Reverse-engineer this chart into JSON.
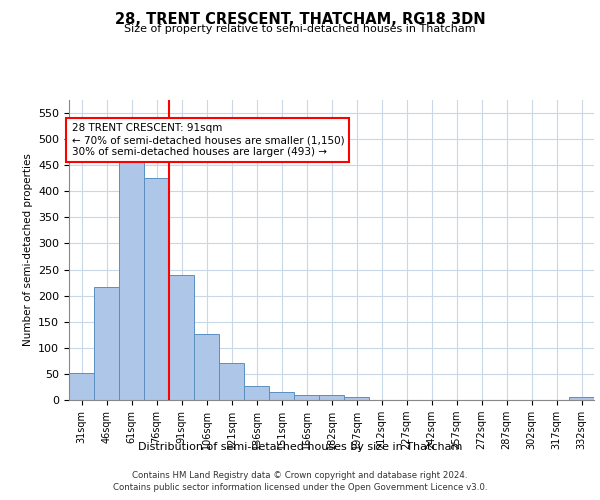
{
  "title": "28, TRENT CRESCENT, THATCHAM, RG18 3DN",
  "subtitle": "Size of property relative to semi-detached houses in Thatcham",
  "xlabel": "Distribution of semi-detached houses by size in Thatcham",
  "ylabel": "Number of semi-detached properties",
  "categories": [
    "31sqm",
    "46sqm",
    "61sqm",
    "76sqm",
    "91sqm",
    "106sqm",
    "121sqm",
    "136sqm",
    "151sqm",
    "166sqm",
    "182sqm",
    "197sqm",
    "212sqm",
    "227sqm",
    "242sqm",
    "257sqm",
    "272sqm",
    "287sqm",
    "302sqm",
    "317sqm",
    "332sqm"
  ],
  "values": [
    52,
    217,
    460,
    425,
    240,
    127,
    70,
    27,
    15,
    10,
    10,
    5,
    0,
    0,
    0,
    0,
    0,
    0,
    0,
    0,
    5
  ],
  "bar_color": "#aec6e8",
  "bar_edge_color": "#5a8fc0",
  "red_line_index": 4,
  "annotation_text_line1": "28 TRENT CRESCENT: 91sqm",
  "annotation_text_line2": "← 70% of semi-detached houses are smaller (1,150)",
  "annotation_text_line3": "30% of semi-detached houses are larger (493) →",
  "ylim": [
    0,
    575
  ],
  "yticks": [
    0,
    50,
    100,
    150,
    200,
    250,
    300,
    350,
    400,
    450,
    500,
    550
  ],
  "footer_line1": "Contains HM Land Registry data © Crown copyright and database right 2024.",
  "footer_line2": "Contains public sector information licensed under the Open Government Licence v3.0.",
  "bg_color": "#ffffff",
  "grid_color": "#c8d8e8"
}
